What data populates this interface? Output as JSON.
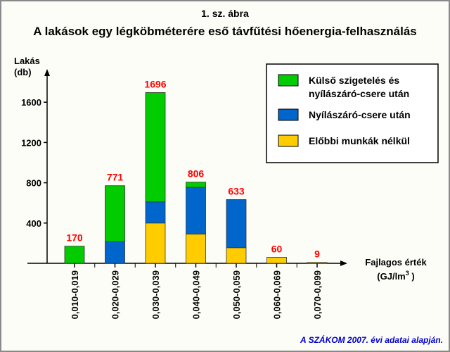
{
  "header": {
    "figure_label": "1. sz. ábra",
    "title": "A lakások egy légköbméterére eső távfűtési hőenergia-felhasználás"
  },
  "footer": {
    "source": "A SZÁKOM 2007. évi adatai alapján."
  },
  "chart_data": {
    "type": "bar",
    "stacked": true,
    "title": "A lakások egy légköbméterére eső távfűtési hőenergia-felhasználás",
    "ylabel_lines": [
      "Lakás",
      "(db)"
    ],
    "xlabel_lines": [
      "Fajlagos érték",
      "(GJ/lm",
      "3",
      " )"
    ],
    "categories": [
      "0,010-0,019",
      "0,020-0,029",
      "0,030-0,039",
      "0,040-0,049",
      "0,050-0,059",
      "0,060-0,069",
      "0,070-0,099"
    ],
    "yticks": [
      400,
      800,
      1200,
      1600
    ],
    "ylim": [
      0,
      1900
    ],
    "grid": false,
    "legend_position": "top-right",
    "series": [
      {
        "name": "Előbbi munkák nélkül",
        "color": "#ffcc00",
        "values": [
          0,
          0,
          400,
          290,
          155,
          60,
          9
        ]
      },
      {
        "name": "Nyílászáró-csere után",
        "color": "#0066cc",
        "values": [
          0,
          215,
          210,
          465,
          478,
          0,
          0
        ]
      },
      {
        "name": "Külső szigetelés és nyílászáró-csere után",
        "color": "#00cc00",
        "values": [
          170,
          556,
          1086,
          51,
          0,
          0,
          0
        ]
      }
    ],
    "totals": [
      170,
      771,
      1696,
      806,
      633,
      60,
      9
    ],
    "legend_items": [
      {
        "lines": [
          "Külső szigetelés és",
          "nyílászáró-csere után"
        ],
        "color": "#00cc00"
      },
      {
        "lines": [
          "Nyílászáró-csere után"
        ],
        "color": "#0066cc"
      },
      {
        "lines": [
          "Előbbi munkák nélkül"
        ],
        "color": "#ffcc00"
      }
    ]
  }
}
